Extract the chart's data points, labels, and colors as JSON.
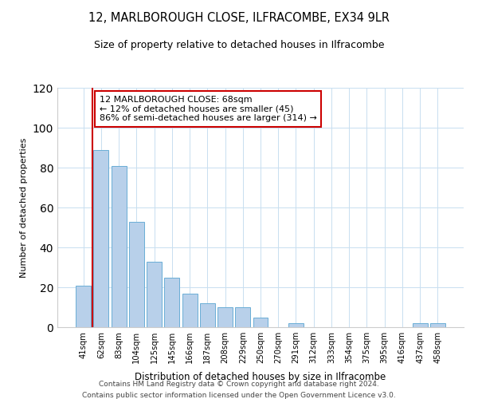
{
  "title1": "12, MARLBOROUGH CLOSE, ILFRACOMBE, EX34 9LR",
  "title2": "Size of property relative to detached houses in Ilfracombe",
  "xlabel": "Distribution of detached houses by size in Ilfracombe",
  "ylabel": "Number of detached properties",
  "bar_labels": [
    "41sqm",
    "62sqm",
    "83sqm",
    "104sqm",
    "125sqm",
    "145sqm",
    "166sqm",
    "187sqm",
    "208sqm",
    "229sqm",
    "250sqm",
    "270sqm",
    "291sqm",
    "312sqm",
    "333sqm",
    "354sqm",
    "375sqm",
    "395sqm",
    "416sqm",
    "437sqm",
    "458sqm"
  ],
  "bar_values": [
    21,
    89,
    81,
    53,
    33,
    25,
    17,
    12,
    10,
    10,
    5,
    0,
    2,
    0,
    0,
    0,
    0,
    0,
    0,
    2,
    2
  ],
  "bar_color": "#b8d0ea",
  "bar_edge_color": "#6aaed6",
  "vline_color": "#cc0000",
  "annotation_title": "12 MARLBOROUGH CLOSE: 68sqm",
  "annotation_line1": "← 12% of detached houses are smaller (45)",
  "annotation_line2": "86% of semi-detached houses are larger (314) →",
  "annotation_box_color": "#ffffff",
  "annotation_box_edge": "#cc0000",
  "ylim": [
    0,
    120
  ],
  "yticks": [
    0,
    20,
    40,
    60,
    80,
    100,
    120
  ],
  "footer1": "Contains HM Land Registry data © Crown copyright and database right 2024.",
  "footer2": "Contains public sector information licensed under the Open Government Licence v3.0."
}
